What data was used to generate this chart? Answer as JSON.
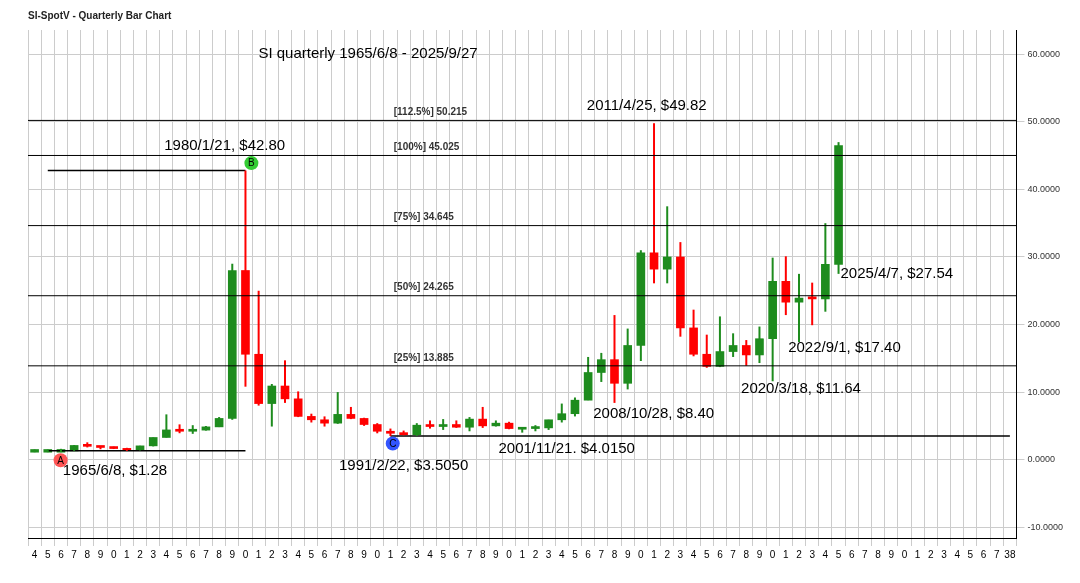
{
  "chart_data": {
    "type": "candlestick",
    "title": "SI-SpotV - Quarterly Bar Chart",
    "subtitle": "SI quarterly 1965/6/8 - 2025/9/27",
    "categories": [
      "4",
      "5",
      "6",
      "7",
      "8",
      "9",
      "0",
      "1",
      "2",
      "3",
      "4",
      "5",
      "6",
      "7",
      "8",
      "9",
      "0",
      "1",
      "2",
      "3",
      "4",
      "5",
      "6",
      "7",
      "8",
      "9",
      "0",
      "1",
      "2",
      "3",
      "4",
      "5",
      "6",
      "7",
      "8",
      "9",
      "0",
      "1",
      "2",
      "3",
      "4",
      "5",
      "6",
      "7",
      "8",
      "9",
      "0",
      "1",
      "2",
      "3",
      "4",
      "5",
      "6",
      "7",
      "8",
      "9",
      "0",
      "1",
      "2",
      "3",
      "4",
      "5",
      "6",
      "7",
      "8",
      "9",
      "0",
      "1",
      "2",
      "3",
      "4",
      "5",
      "6",
      "7",
      "38"
    ],
    "ohlc": [
      [
        1.1,
        1.5,
        1.1,
        1.5
      ],
      [
        1.1,
        1.5,
        1.1,
        1.5
      ],
      [
        1.1,
        1.6,
        1.1,
        1.5
      ],
      [
        1.29,
        2.17,
        1.29,
        2.1
      ],
      [
        2.1,
        2.56,
        1.81,
        1.97
      ],
      [
        1.97,
        2.03,
        1.54,
        1.8
      ],
      [
        1.8,
        1.93,
        1.57,
        1.64
      ],
      [
        1.64,
        1.75,
        1.29,
        1.37
      ],
      [
        1.37,
        2.05,
        1.37,
        2.04
      ],
      [
        2.04,
        3.28,
        1.96,
        3.28
      ],
      [
        3.28,
        6.7,
        3.27,
        4.4
      ],
      [
        4.4,
        5.22,
        3.91,
        4.2
      ],
      [
        4.2,
        5.1,
        3.82,
        4.37
      ],
      [
        4.37,
        4.98,
        4.3,
        4.85
      ],
      [
        4.85,
        6.3,
        4.82,
        6.1
      ],
      [
        6.1,
        29,
        5.9,
        28
      ],
      [
        28,
        42.8,
        10.8,
        15.6
      ],
      [
        15.6,
        25,
        8,
        8.3
      ],
      [
        8.3,
        11.2,
        4.9,
        10.9
      ],
      [
        10.9,
        14.7,
        8.4,
        9
      ],
      [
        9,
        10.1,
        6.3,
        6.4
      ],
      [
        6.4,
        6.8,
        5.5,
        5.9
      ],
      [
        5.9,
        6.4,
        4.9,
        5.4
      ],
      [
        5.4,
        10,
        5.3,
        6.7
      ],
      [
        6.7,
        7.8,
        6,
        6.1
      ],
      [
        6.1,
        6.2,
        5,
        5.2
      ],
      [
        5.2,
        5.4,
        3.9,
        4.2
      ],
      [
        4.2,
        4.6,
        3.5,
        3.9
      ],
      [
        3.9,
        4.3,
        3.6,
        3.7
      ],
      [
        3.7,
        5.4,
        3.5,
        5.1
      ],
      [
        5.1,
        5.8,
        4.6,
        4.9
      ],
      [
        4.9,
        6,
        4.4,
        5.2
      ],
      [
        5.2,
        5.8,
        4.7,
        4.8
      ],
      [
        4.8,
        6.3,
        4.2,
        6
      ],
      [
        6,
        7.8,
        4.7,
        5
      ],
      [
        5,
        5.8,
        4.9,
        5.4
      ],
      [
        5.4,
        5.6,
        4.5,
        4.6
      ],
      [
        4.5,
        4.8,
        4,
        4.6
      ],
      [
        4.6,
        5.1,
        4.2,
        4.7
      ],
      [
        4.7,
        5.9,
        4.4,
        5.9
      ],
      [
        5.9,
        8.3,
        5.5,
        6.8
      ],
      [
        6.8,
        9.2,
        6.4,
        8.8
      ],
      [
        8.8,
        15.2,
        8.8,
        12.9
      ],
      [
        12.9,
        15.8,
        11.5,
        14.8
      ],
      [
        14.8,
        21.4,
        8.4,
        11.3
      ],
      [
        11.3,
        19.4,
        10.4,
        16.9
      ],
      [
        16.9,
        31,
        14.6,
        30.6
      ],
      [
        30.6,
        49.8,
        26.1,
        28.2
      ],
      [
        28.2,
        37.5,
        26.1,
        30
      ],
      [
        30,
        32.2,
        18.2,
        19.5
      ],
      [
        19.5,
        22.2,
        15.3,
        15.6
      ],
      [
        15.6,
        18.5,
        13.6,
        13.8
      ],
      [
        13.8,
        21.2,
        13.7,
        16
      ],
      [
        16,
        18.7,
        15.2,
        16.9
      ],
      [
        16.9,
        17.7,
        13.9,
        15.5
      ],
      [
        15.5,
        19.7,
        14.3,
        17.9
      ],
      [
        17.9,
        29.9,
        11.6,
        26.4
      ],
      [
        26.4,
        30.1,
        21.4,
        23.3
      ],
      [
        23.3,
        27.5,
        17.4,
        23.9
      ],
      [
        23.9,
        26.2,
        19.9,
        23.8
      ],
      [
        23.8,
        35,
        21.9,
        28.9
      ],
      [
        28.9,
        47,
        27.5,
        46.5
      ],
      null,
      null,
      null,
      null,
      null,
      null,
      null,
      null,
      null,
      null,
      null,
      null,
      null
    ],
    "colors": [
      "#1e8c1e",
      "#1e8c1e",
      "#1e8c1e",
      "#1e8c1e",
      "#ff0000",
      "#ff0000",
      "#ff0000",
      "#ff0000",
      "#1e8c1e",
      "#1e8c1e",
      "#1e8c1e",
      "#ff0000",
      "#1e8c1e",
      "#1e8c1e",
      "#1e8c1e",
      "#1e8c1e",
      "#ff0000",
      "#ff0000",
      "#1e8c1e",
      "#ff0000",
      "#ff0000",
      "#ff0000",
      "#ff0000",
      "#1e8c1e",
      "#ff0000",
      "#ff0000",
      "#ff0000",
      "#ff0000",
      "#ff0000",
      "#1e8c1e",
      "#ff0000",
      "#1e8c1e",
      "#ff0000",
      "#1e8c1e",
      "#ff0000",
      "#1e8c1e",
      "#ff0000",
      "#1e8c1e",
      "#1e8c1e",
      "#1e8c1e",
      "#1e8c1e",
      "#1e8c1e",
      "#1e8c1e",
      "#1e8c1e",
      "#ff0000",
      "#1e8c1e",
      "#1e8c1e",
      "#ff0000",
      "#1e8c1e",
      "#ff0000",
      "#ff0000",
      "#ff0000",
      "#1e8c1e",
      "#1e8c1e",
      "#ff0000",
      "#1e8c1e",
      "#1e8c1e",
      "#ff0000",
      "#1e8c1e",
      "#ff0000",
      "#1e8c1e",
      "#1e8c1e",
      null,
      null,
      null,
      null,
      null,
      null,
      null,
      null,
      null,
      null,
      null,
      null,
      null
    ],
    "series": [
      {
        "type": "line",
        "color": "#000000",
        "values": [
          null,
          42.8,
          42.8,
          42.8,
          42.8,
          42.8,
          42.8,
          42.8,
          42.8,
          42.8,
          42.8,
          42.8,
          42.8,
          42.8,
          42.8,
          42.8,
          42.8,
          null,
          null,
          null,
          null,
          null,
          null,
          null,
          null,
          null,
          null,
          null,
          null,
          null,
          null,
          null,
          null,
          null,
          null,
          null,
          null,
          null,
          null,
          null,
          null,
          null,
          null,
          null,
          null,
          null,
          null,
          null,
          null,
          null,
          null,
          null,
          null,
          null,
          null,
          null,
          null,
          null,
          null,
          null,
          null,
          null,
          null,
          null,
          null,
          null,
          null,
          null,
          null,
          null,
          null,
          null,
          null,
          null,
          null
        ]
      },
      {
        "type": "line",
        "color": "#000000",
        "values": [
          null,
          1.3,
          1.3,
          1.3,
          1.3,
          1.3,
          1.3,
          1.3,
          1.3,
          1.3,
          1.3,
          1.3,
          1.3,
          1.3,
          1.3,
          1.3,
          1.3,
          null,
          null,
          null,
          null,
          null,
          null,
          null,
          null,
          null,
          null,
          null,
          null,
          null,
          null,
          null,
          null,
          null,
          null,
          null,
          null,
          null,
          null,
          null,
          null,
          null,
          null,
          null,
          null,
          null,
          null,
          null,
          null,
          null,
          null,
          null,
          null,
          null,
          null,
          null,
          null,
          null,
          null,
          null,
          null,
          null,
          null,
          null,
          null,
          null,
          null,
          null,
          null,
          null,
          null,
          null,
          null,
          null,
          null
        ]
      },
      {
        "type": "line",
        "color": "#000000",
        "values": [
          null,
          null,
          null,
          null,
          null,
          null,
          null,
          null,
          null,
          null,
          null,
          null,
          null,
          null,
          null,
          null,
          null,
          null,
          null,
          null,
          null,
          null,
          null,
          null,
          null,
          null,
          null,
          3.5,
          3.5,
          3.5,
          3.5,
          3.5,
          3.5,
          3.5,
          3.5,
          3.5,
          3.5,
          3.5,
          3.5,
          3.5,
          3.5,
          3.5,
          3.5,
          3.5,
          3.5,
          3.5,
          3.5,
          3.5,
          3.5,
          3.5,
          3.5,
          3.5,
          3.5,
          3.5,
          3.5,
          3.5,
          3.5,
          3.5,
          3.5,
          3.5,
          3.5,
          3.5,
          3.5,
          3.5,
          3.5,
          3.5,
          3.5,
          3.5,
          3.5,
          3.5,
          3.5,
          3.5,
          3.5,
          3.5,
          3.5
        ]
      }
    ],
    "ref_lines": [
      {
        "axis": "y",
        "value": 50.215,
        "label": "[112.5%] 50.215",
        "color": "#000000"
      },
      {
        "axis": "y",
        "value": 45.025,
        "label": "[100%] 45.025",
        "color": "#000000"
      },
      {
        "axis": "y",
        "value": 34.645,
        "label": "[75%] 34.645",
        "color": "#000000"
      },
      {
        "axis": "y",
        "value": 24.265,
        "label": "[50%] 24.265",
        "color": "#000000"
      },
      {
        "axis": "y",
        "value": 13.885,
        "label": "[25%] 13.885",
        "color": "#000000"
      }
    ],
    "annotations": [
      "1965/6/8, $1.28",
      "1980/1/21, $42.80",
      "1991/2/22, $3.5050",
      "2001/11/21. $4.0150",
      "2008/10/28, $8.40",
      "2011/4/25, $49.82",
      "2020/3/18, $11.64",
      "2022/9/1, $17.40",
      "2025/4/7, $27.54",
      "A",
      "B",
      "C"
    ],
    "ylim": [
      -11.6,
      63.6
    ],
    "yticks": [
      {
        "value": -10,
        "label": "-10.0000"
      },
      {
        "value": 0,
        "label": "0.0000"
      },
      {
        "value": 10,
        "label": "10.0000"
      },
      {
        "value": 20,
        "label": "20.0000"
      },
      {
        "value": 30,
        "label": "30.0000"
      },
      {
        "value": 40,
        "label": "40.0000"
      },
      {
        "value": 50,
        "label": "50.0000"
      },
      {
        "value": 60,
        "label": "60.0000"
      }
    ],
    "grid": true
  }
}
